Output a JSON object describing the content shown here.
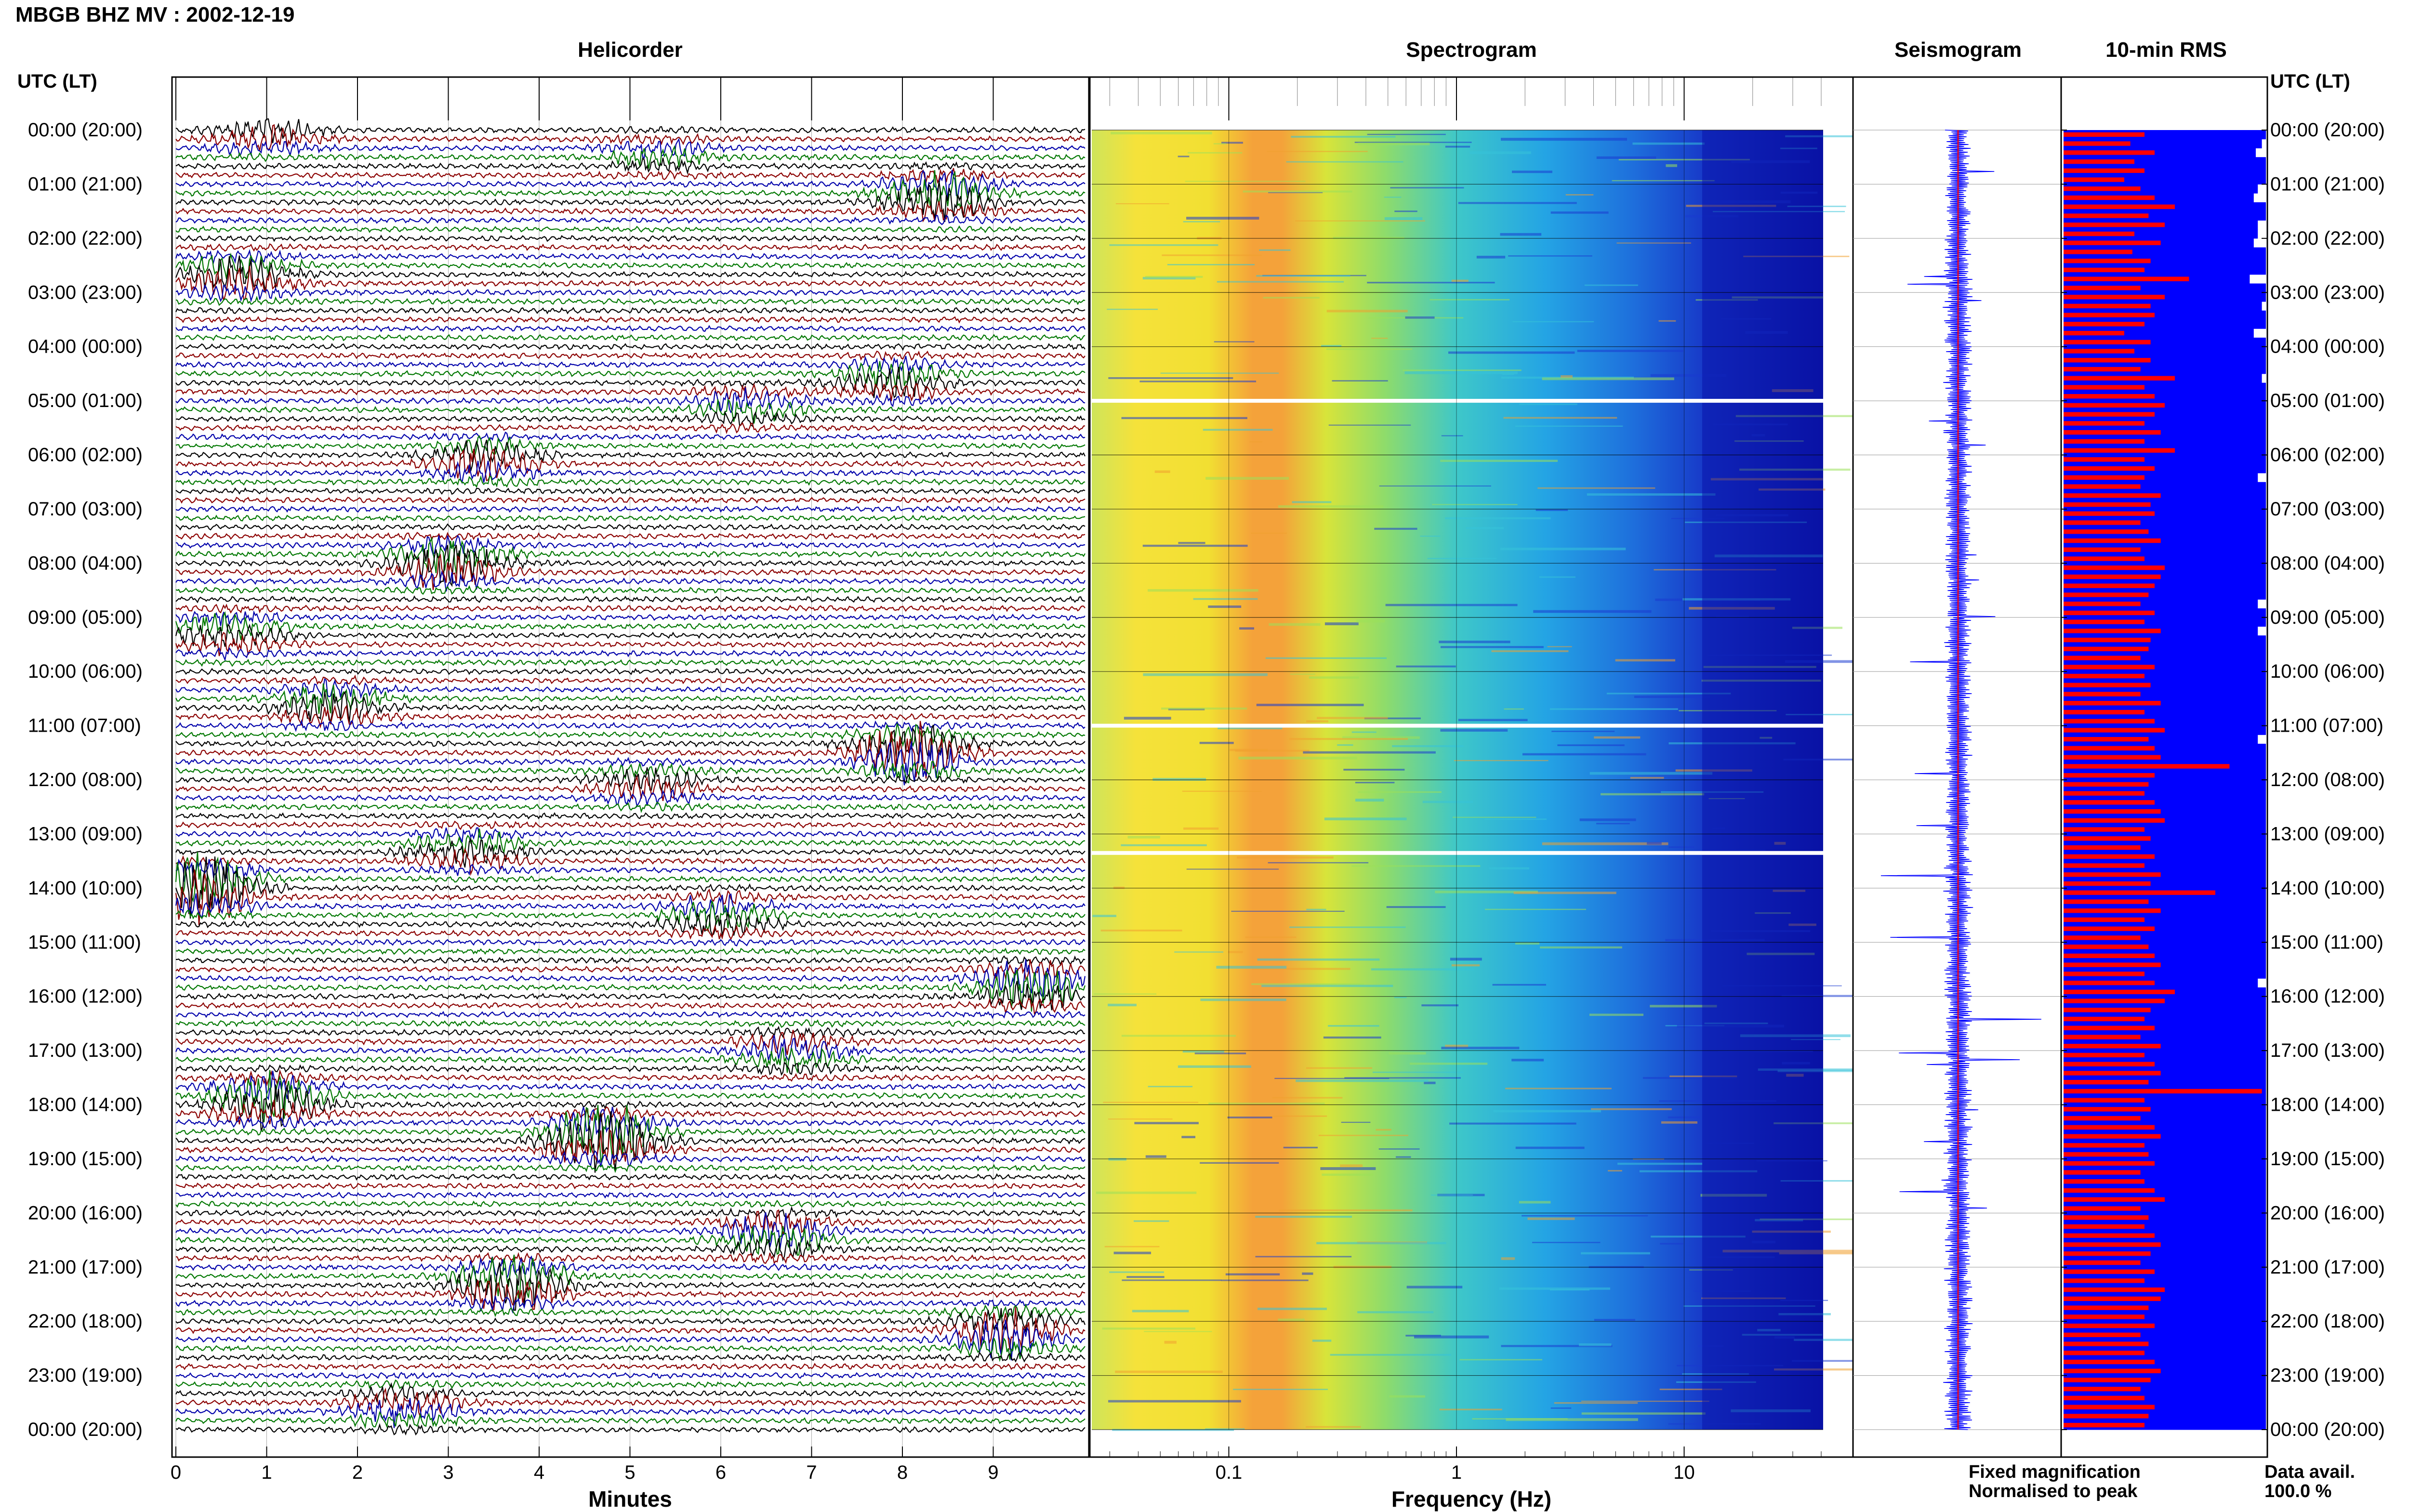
{
  "chart_data": {
    "type": "seismic-dayplot",
    "station_title": "MBGB BHZ MV : 2002-12-19",
    "tz_label": "UTC (LT)",
    "row_labels": [
      "00:00 (20:00)",
      "01:00 (21:00)",
      "02:00 (22:00)",
      "03:00 (23:00)",
      "04:00 (00:00)",
      "05:00 (01:00)",
      "06:00 (02:00)",
      "07:00 (03:00)",
      "08:00 (04:00)",
      "09:00 (05:00)",
      "10:00 (06:00)",
      "11:00 (07:00)",
      "12:00 (08:00)",
      "13:00 (09:00)",
      "14:00 (10:00)",
      "15:00 (11:00)",
      "16:00 (12:00)",
      "17:00 (13:00)",
      "18:00 (14:00)",
      "19:00 (15:00)",
      "20:00 (16:00)",
      "21:00 (17:00)",
      "22:00 (18:00)",
      "23:00 (19:00)",
      "00:00 (20:00)"
    ],
    "helicorder": {
      "title": "Helicorder",
      "xlabel": "Minutes",
      "xticks": [
        "0",
        "1",
        "2",
        "3",
        "4",
        "5",
        "6",
        "7",
        "8",
        "9"
      ],
      "xlim": [
        0,
        10
      ],
      "lines_per_hour": 6,
      "trace_colors": [
        "#000000",
        "#8b0000",
        "#0000aa",
        "#007700"
      ],
      "events": [
        {
          "hour": 0.05,
          "minute": 1.0,
          "amp": 1.8
        },
        {
          "hour": 0.45,
          "minute": 5.3,
          "amp": 1.3
        },
        {
          "hour": 1.2,
          "minute": 8.4,
          "amp": 3.0
        },
        {
          "hour": 2.7,
          "minute": 0.7,
          "amp": 2.5
        },
        {
          "hour": 4.6,
          "minute": 7.9,
          "amp": 2.0
        },
        {
          "hour": 5.1,
          "minute": 6.3,
          "amp": 1.6
        },
        {
          "hour": 6.1,
          "minute": 3.4,
          "amp": 2.2
        },
        {
          "hour": 8.0,
          "minute": 3.0,
          "amp": 3.2
        },
        {
          "hour": 9.3,
          "minute": 0.6,
          "amp": 2.0
        },
        {
          "hour": 10.6,
          "minute": 1.7,
          "amp": 2.2
        },
        {
          "hour": 11.5,
          "minute": 8.1,
          "amp": 4.0
        },
        {
          "hour": 12.1,
          "minute": 5.2,
          "amp": 1.5
        },
        {
          "hour": 13.3,
          "minute": 3.2,
          "amp": 2.0
        },
        {
          "hour": 14.0,
          "minute": 0.3,
          "amp": 4.5
        },
        {
          "hour": 14.5,
          "minute": 6.0,
          "amp": 2.0
        },
        {
          "hour": 15.8,
          "minute": 9.4,
          "amp": 3.0
        },
        {
          "hour": 17.0,
          "minute": 6.8,
          "amp": 2.0
        },
        {
          "hour": 17.9,
          "minute": 1.0,
          "amp": 3.5
        },
        {
          "hour": 18.6,
          "minute": 4.7,
          "amp": 4.5
        },
        {
          "hour": 20.4,
          "minute": 6.6,
          "amp": 2.5
        },
        {
          "hour": 21.3,
          "minute": 3.7,
          "amp": 3.5
        },
        {
          "hour": 22.2,
          "minute": 9.1,
          "amp": 3.0
        },
        {
          "hour": 23.6,
          "minute": 2.5,
          "amp": 2.0
        }
      ]
    },
    "spectrogram": {
      "title": "Spectrogram",
      "xlabel": "Frequency (Hz)",
      "xscale": "log",
      "xlim": [
        0.025,
        40
      ],
      "xticks": [
        "0.1",
        "1",
        "10"
      ],
      "xtick_values": [
        0.1,
        1,
        10
      ],
      "peak_frequency_hz": 0.25,
      "gap_hours": [
        5.0,
        11.0,
        13.35
      ]
    },
    "seismogram": {
      "title": "Seismogram"
    },
    "rms": {
      "title": "10-min RMS",
      "blue_max": [
        100,
        98,
        95,
        100,
        100,
        100,
        96,
        94,
        100,
        100,
        96,
        96,
        94,
        100,
        100,
        100,
        92,
        100,
        100,
        98,
        100,
        100,
        94,
        100,
        100,
        100,
        100,
        98,
        100,
        100,
        100,
        100,
        100,
        100,
        100,
        100,
        100,
        100,
        96,
        100,
        100,
        100,
        100,
        100,
        100,
        100,
        100,
        100,
        100,
        100,
        100,
        100,
        96,
        100,
        100,
        96,
        100,
        100,
        100,
        100,
        100,
        100,
        100,
        100,
        100,
        100,
        100,
        96,
        100,
        100,
        100,
        100,
        100,
        100,
        100,
        100,
        100,
        100,
        100,
        100,
        100,
        100,
        100,
        100,
        100,
        100,
        100,
        100,
        100,
        100,
        100,
        100,
        100,
        100,
        96,
        100,
        100,
        100,
        100,
        100,
        100,
        100,
        100,
        100,
        100,
        100,
        100,
        100,
        100,
        100,
        100,
        100,
        100,
        100,
        100,
        100,
        100,
        100,
        100,
        100,
        100,
        100,
        100,
        100,
        100,
        100,
        100,
        100,
        100,
        100,
        100,
        100,
        100,
        100,
        100,
        100,
        100,
        100,
        100,
        100,
        100,
        100,
        100,
        100
      ],
      "red_peak": [
        40,
        33,
        45,
        35,
        40,
        30,
        38,
        45,
        55,
        42,
        50,
        35,
        48,
        34,
        43,
        40,
        62,
        38,
        50,
        43,
        45,
        40,
        30,
        43,
        35,
        43,
        38,
        55,
        40,
        45,
        50,
        45,
        40,
        48,
        40,
        55,
        40,
        45,
        40,
        38,
        48,
        43,
        45,
        38,
        42,
        48,
        38,
        40,
        50,
        48,
        45,
        42,
        38,
        45,
        40,
        48,
        43,
        42,
        38,
        45,
        40,
        43,
        38,
        48,
        40,
        45,
        50,
        42,
        45,
        48,
        82,
        45,
        42,
        40,
        45,
        48,
        50,
        40,
        43,
        38,
        45,
        40,
        48,
        43,
        75,
        42,
        48,
        40,
        45,
        38,
        42,
        45,
        48,
        40,
        45,
        55,
        50,
        43,
        40,
        45,
        38,
        48,
        40,
        45,
        48,
        42,
        98,
        40,
        43,
        38,
        45,
        48,
        40,
        42,
        45,
        38,
        40,
        45,
        50,
        38,
        42,
        40,
        45,
        48,
        43,
        38,
        45,
        40,
        50,
        48,
        42,
        40,
        45,
        38,
        42,
        40,
        45,
        48,
        43,
        38,
        40,
        45,
        42,
        40
      ]
    },
    "legend": {
      "fixed": {
        "label": "Fixed magnification",
        "color": "#0000ff"
      },
      "normalised": {
        "label": "Normalised to peak",
        "color": "#ff0000"
      }
    },
    "data_avail": {
      "label": "Data avail.",
      "value": "100.0 %"
    }
  }
}
